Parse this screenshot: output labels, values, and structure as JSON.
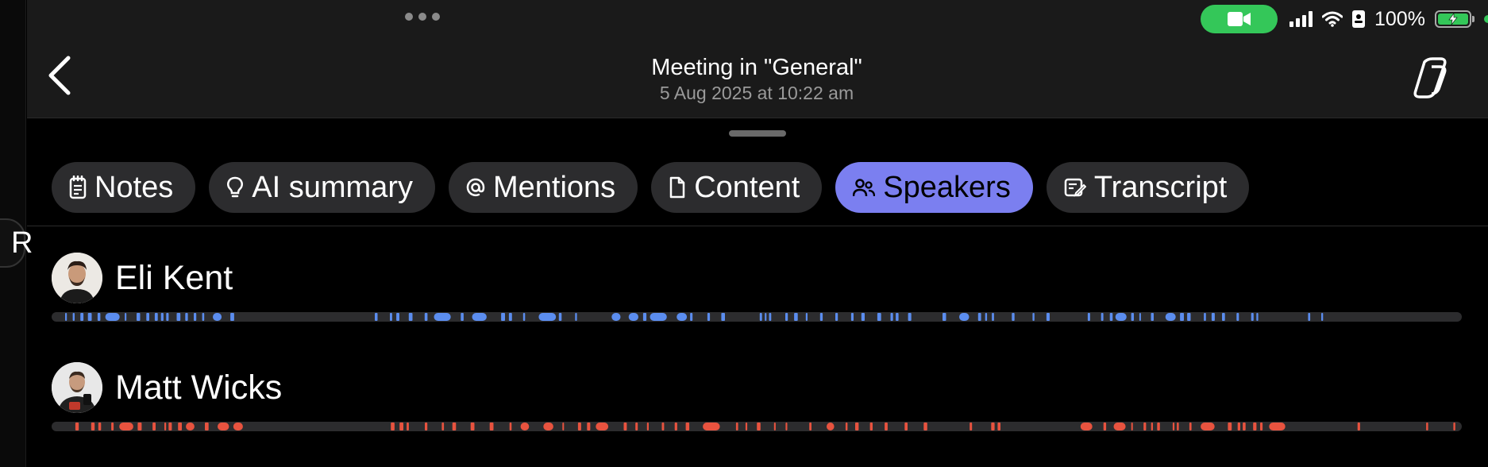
{
  "status_bar": {
    "battery_percent": "100%",
    "icons": [
      "more-dots-icon",
      "video-camera-icon",
      "cellular-signal-icon",
      "wifi-icon",
      "id-card-icon",
      "battery-charging-icon",
      "green-indicator-dot"
    ]
  },
  "left_edge": {
    "tab_letter": "R"
  },
  "header": {
    "title": "Meeting in \"General\"",
    "subtitle": "5 Aug 2025 at 10:22 am",
    "back_icon": "chevron-left-icon",
    "copilot_icon": "copilot-icon"
  },
  "tabs": [
    {
      "label": "Notes",
      "icon": "notes-icon",
      "active": false
    },
    {
      "label": "AI summary",
      "icon": "lightbulb-icon",
      "active": false
    },
    {
      "label": "Mentions",
      "icon": "at-sign-icon",
      "active": false
    },
    {
      "label": "Content",
      "icon": "document-icon",
      "active": false
    },
    {
      "label": "Speakers",
      "icon": "people-icon",
      "active": true
    },
    {
      "label": "Transcript",
      "icon": "transcript-icon",
      "active": false
    }
  ],
  "speakers": [
    {
      "name": "Eli Kent",
      "color": "#5b8def"
    },
    {
      "name": "Matt Wicks",
      "color": "#e8533f"
    }
  ],
  "colors": {
    "accent": "#7b7ff0",
    "status_green": "#34c759",
    "track_bg": "#2c2c2e"
  }
}
